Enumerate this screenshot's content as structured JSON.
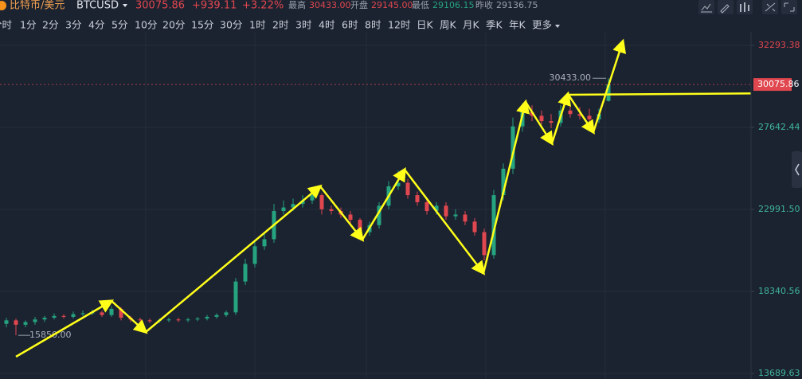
{
  "header": {
    "name": "比特币/美元",
    "symbol": "BTCUSD",
    "price": "30075.86",
    "change": "+939.11",
    "change_pct": "+3.22%",
    "stats": [
      {
        "label": "最高",
        "value": "30433.00"
      },
      {
        "label": "开盘",
        "value": "29145.00"
      },
      {
        "label": "最低",
        "value": "29106.15"
      },
      {
        "label": "昨收",
        "value": "29136.75"
      }
    ]
  },
  "timeframes": [
    "分时",
    "1分",
    "2分",
    "3分",
    "4分",
    "5分",
    "10分",
    "20分",
    "15分",
    "30分",
    "1时",
    "2时",
    "3时",
    "4时",
    "6时",
    "8时",
    "12时",
    "日K",
    "周K",
    "月K",
    "季K",
    "年K",
    "更多"
  ],
  "active_timeframe_index": 17,
  "chart_data": {
    "type": "candlestick",
    "open": [
      16500,
      16700,
      16450,
      16600,
      16750,
      16850,
      16950,
      16900,
      17050,
      17100,
      17150,
      17000,
      17350,
      16850,
      16750,
      16700,
      16650,
      16700,
      16750,
      16700,
      16750,
      16800,
      16900,
      17000,
      17150,
      18900,
      19900,
      20900,
      21300,
      22900,
      23100,
      23300,
      23500,
      23800,
      23000,
      22900,
      22700,
      22400,
      21700,
      22100,
      23200,
      24300,
      24500,
      23800,
      23400,
      22900,
      23200,
      22600,
      22700,
      22300,
      21700,
      20400,
      23800,
      25300,
      27700,
      28500,
      28300,
      28000,
      27900,
      28600,
      28400,
      28300,
      28100,
      29145
    ],
    "high": [
      16850,
      16800,
      16700,
      16900,
      16950,
      17100,
      17050,
      17200,
      17250,
      17300,
      17250,
      17500,
      17450,
      16950,
      16850,
      16800,
      16800,
      16850,
      16850,
      16850,
      16900,
      17000,
      17100,
      17250,
      19100,
      20200,
      21200,
      21600,
      23300,
      23500,
      23600,
      23800,
      24200,
      23900,
      23200,
      23100,
      22900,
      22500,
      22300,
      23400,
      24600,
      25200,
      24700,
      24000,
      23600,
      23400,
      23400,
      23000,
      22900,
      22500,
      21900,
      24100,
      25600,
      28200,
      29000,
      28900,
      28600,
      28400,
      28900,
      28900,
      28800,
      28700,
      28700,
      30433
    ],
    "low": [
      16300,
      15850,
      16300,
      16450,
      16600,
      16750,
      16800,
      16800,
      16950,
      17000,
      16900,
      16900,
      16700,
      16600,
      16600,
      16550,
      16550,
      16600,
      16600,
      16600,
      16650,
      16700,
      16800,
      16900,
      17000,
      18700,
      19700,
      20700,
      21100,
      22700,
      22900,
      23100,
      23300,
      22700,
      22700,
      22500,
      22200,
      21500,
      21500,
      21900,
      23000,
      24100,
      23600,
      23200,
      22700,
      22700,
      22400,
      22400,
      22100,
      21500,
      20100,
      20200,
      23500,
      25000,
      27400,
      28000,
      27800,
      27600,
      27700,
      28200,
      28100,
      27900,
      27900,
      29106.15
    ],
    "close": [
      16700,
      16450,
      16600,
      16750,
      16850,
      16950,
      16900,
      17050,
      17100,
      17150,
      17000,
      17350,
      16850,
      16750,
      16700,
      16650,
      16700,
      16750,
      16700,
      16750,
      16800,
      16900,
      17000,
      17150,
      18900,
      19900,
      20900,
      21300,
      22900,
      23100,
      23300,
      23500,
      23800,
      23000,
      22900,
      22700,
      22400,
      21700,
      22100,
      23200,
      24300,
      24500,
      23800,
      23400,
      22900,
      23200,
      22600,
      22700,
      22300,
      21700,
      20400,
      23800,
      25300,
      27700,
      28500,
      28300,
      28000,
      27900,
      28600,
      28400,
      28300,
      28100,
      28400,
      30075.86
    ],
    "up_color": "#26a37f",
    "down_color": "#e0474f",
    "ylim": [
      13373,
      33061
    ],
    "yticks": [
      32293.38,
      27642.44,
      {
        "value": 22991.5,
        "label": "22991.50"
      },
      18340.56,
      13689.63
    ],
    "high_label": "30433.00",
    "low_label": "15850.00",
    "grid": true
  }
}
